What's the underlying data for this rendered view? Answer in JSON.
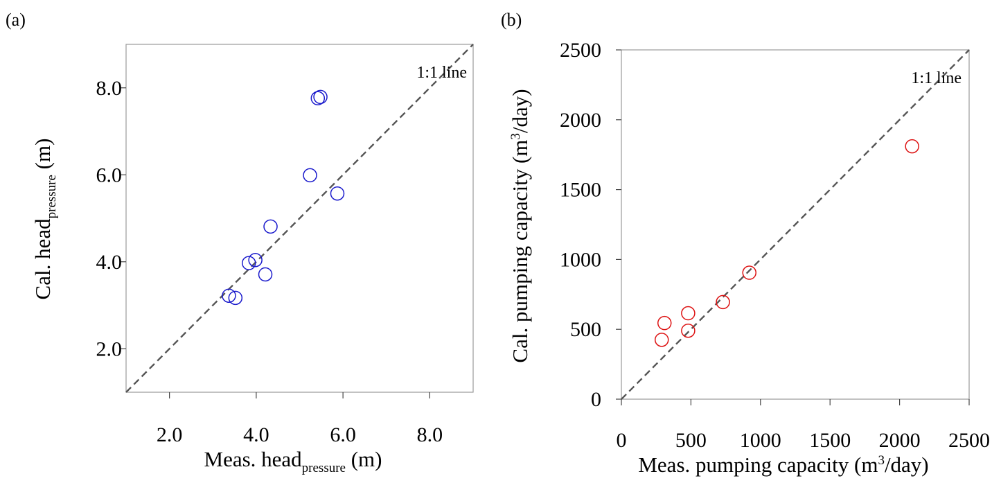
{
  "chart_data": [
    {
      "panel_label": "(a)",
      "type": "scatter",
      "xlabel": {
        "main": "Meas. head",
        "sub": "pressure",
        "unit": " (m)"
      },
      "ylabel": {
        "main": "Cal. head",
        "sub": "pressure",
        "unit": " (m)"
      },
      "xlim": [
        1.0,
        9.0
      ],
      "ylim": [
        1.0,
        9.0
      ],
      "xticks": [
        2.0,
        4.0,
        6.0,
        8.0
      ],
      "xtick_labels": [
        "2.0",
        "4.0",
        "6.0",
        "8.0"
      ],
      "yticks": [
        2.0,
        4.0,
        6.0,
        8.0
      ],
      "ytick_labels": [
        "2.0",
        "4.0",
        "6.0",
        "8.0"
      ],
      "reference_line": {
        "label": "1:1 line",
        "style": "dashed",
        "color": "#555555"
      },
      "marker": {
        "shape": "open-circle",
        "color": "#1a1acc"
      },
      "grid": false,
      "points": [
        {
          "x": 5.42,
          "y": 7.76
        },
        {
          "x": 5.48,
          "y": 7.79
        },
        {
          "x": 5.24,
          "y": 5.99
        },
        {
          "x": 5.87,
          "y": 5.57
        },
        {
          "x": 4.33,
          "y": 4.81
        },
        {
          "x": 3.98,
          "y": 4.04
        },
        {
          "x": 3.83,
          "y": 3.97
        },
        {
          "x": 4.21,
          "y": 3.71
        },
        {
          "x": 3.37,
          "y": 3.22
        },
        {
          "x": 3.52,
          "y": 3.17
        }
      ]
    },
    {
      "panel_label": "(b)",
      "type": "scatter",
      "xlabel": {
        "main": "Meas. pumping capacity (m",
        "sup": "3",
        "unit": "/day)"
      },
      "ylabel": {
        "main": "Cal. pumping capacity (m",
        "sup": "3",
        "unit": "/day)"
      },
      "xlim": [
        0,
        2500
      ],
      "ylim": [
        0,
        2500
      ],
      "xticks": [
        0,
        500,
        1000,
        1500,
        2000,
        2500
      ],
      "xtick_labels": [
        "0",
        "500",
        "1000",
        "1500",
        "2000",
        "2500"
      ],
      "yticks": [
        0,
        500,
        1000,
        1500,
        2000,
        2500
      ],
      "ytick_labels": [
        "0",
        "500",
        "1000",
        "1500",
        "2000",
        "2500"
      ],
      "reference_line": {
        "label": "1:1 line",
        "style": "dashed",
        "color": "#555555"
      },
      "marker": {
        "shape": "open-circle",
        "color": "#dd1111"
      },
      "grid": false,
      "points": [
        {
          "x": 290,
          "y": 425
        },
        {
          "x": 310,
          "y": 545
        },
        {
          "x": 480,
          "y": 615
        },
        {
          "x": 480,
          "y": 490
        },
        {
          "x": 730,
          "y": 695
        },
        {
          "x": 920,
          "y": 905
        },
        {
          "x": 2090,
          "y": 1810
        }
      ]
    }
  ]
}
